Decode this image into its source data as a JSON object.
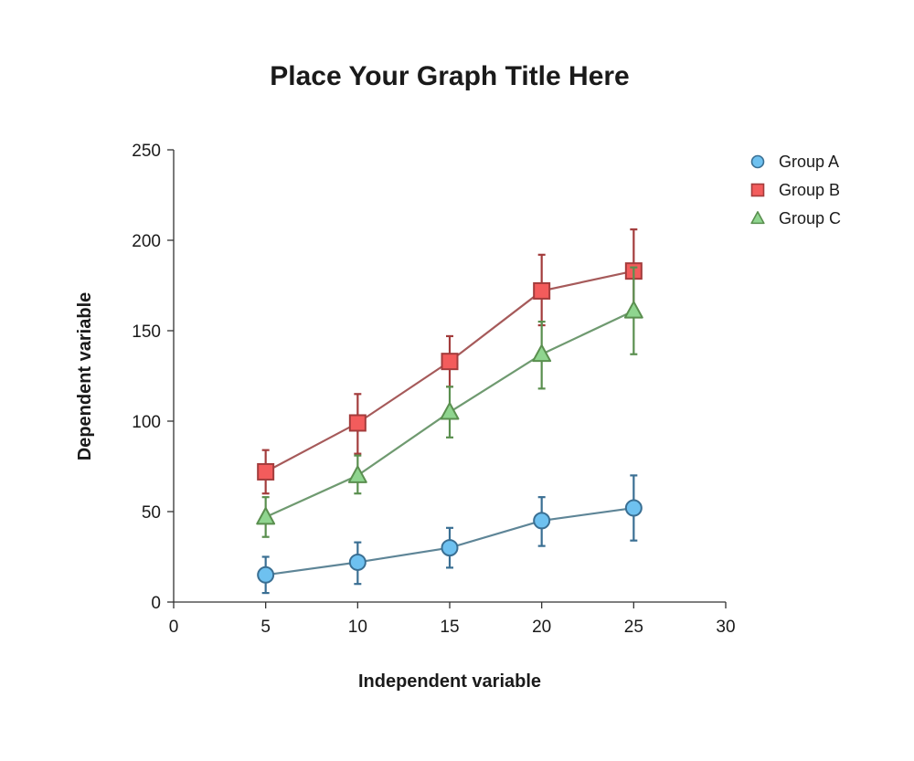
{
  "chart_data": {
    "type": "line",
    "title": "Place Your Graph Title Here",
    "xlabel": "Independent variable",
    "ylabel": "Dependent variable",
    "xlim": [
      0,
      30
    ],
    "ylim": [
      0,
      250
    ],
    "xticks": [
      0,
      5,
      10,
      15,
      20,
      25,
      30
    ],
    "yticks": [
      0,
      50,
      100,
      150,
      200,
      250
    ],
    "grid": false,
    "legend_position": "top-right",
    "x": [
      5,
      10,
      15,
      20,
      25
    ],
    "series": [
      {
        "name": "Group A",
        "marker": "circle",
        "fill": "#6EC1F0",
        "stroke": "#3A6F93",
        "line": "#5E8597",
        "values": [
          15,
          22,
          30,
          45,
          52
        ],
        "error_low": [
          5,
          10,
          19,
          31,
          34
        ],
        "error_high": [
          25,
          33,
          41,
          58,
          70
        ]
      },
      {
        "name": "Group B",
        "marker": "square",
        "fill": "#F35C5C",
        "stroke": "#A33C3C",
        "line": "#A65A5A",
        "values": [
          72,
          99,
          133,
          172,
          183
        ],
        "error_low": [
          60,
          82,
          119,
          153,
          160
        ],
        "error_high": [
          84,
          115,
          147,
          192,
          206
        ]
      },
      {
        "name": "Group C",
        "marker": "triangle",
        "fill": "#8FD58F",
        "stroke": "#5A8F4F",
        "line": "#6F9A70",
        "values": [
          47,
          70,
          105,
          137,
          161
        ],
        "error_low": [
          36,
          60,
          91,
          118,
          137
        ],
        "error_high": [
          58,
          81,
          119,
          155,
          185
        ]
      }
    ]
  }
}
